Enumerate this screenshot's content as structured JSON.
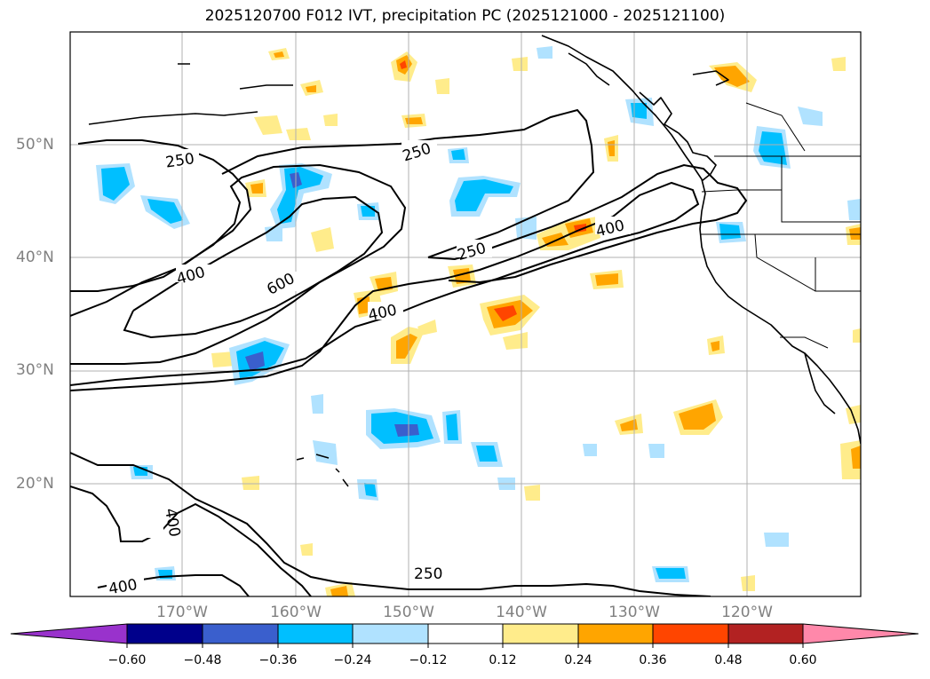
{
  "title": "2025120700 F012 IVT, precipitation PC (2025121000 - 2025121100)",
  "lat_labels": [
    "50°N",
    "40°N",
    "30°N",
    "20°N"
  ],
  "lon_labels": [
    "170°W",
    "160°W",
    "150°W",
    "140°W",
    "130°W",
    "120°W"
  ],
  "contour_labels": [
    "250",
    "250",
    "400",
    "600",
    "250",
    "400",
    "400",
    "400",
    "250",
    "400"
  ],
  "colorbar": {
    "ticks": [
      "−0.60",
      "−0.48",
      "−0.36",
      "−0.24",
      "−0.12",
      "0.12",
      "0.24",
      "0.36",
      "0.48",
      "0.60"
    ],
    "colors": [
      "#9932cc",
      "#00008b",
      "#3a5fcd",
      "#00bfff",
      "#b0e2ff",
      "#ffffff",
      "#ffec8b",
      "#ffa500",
      "#ff4500",
      "#b22222",
      "#ff88aa"
    ]
  }
}
